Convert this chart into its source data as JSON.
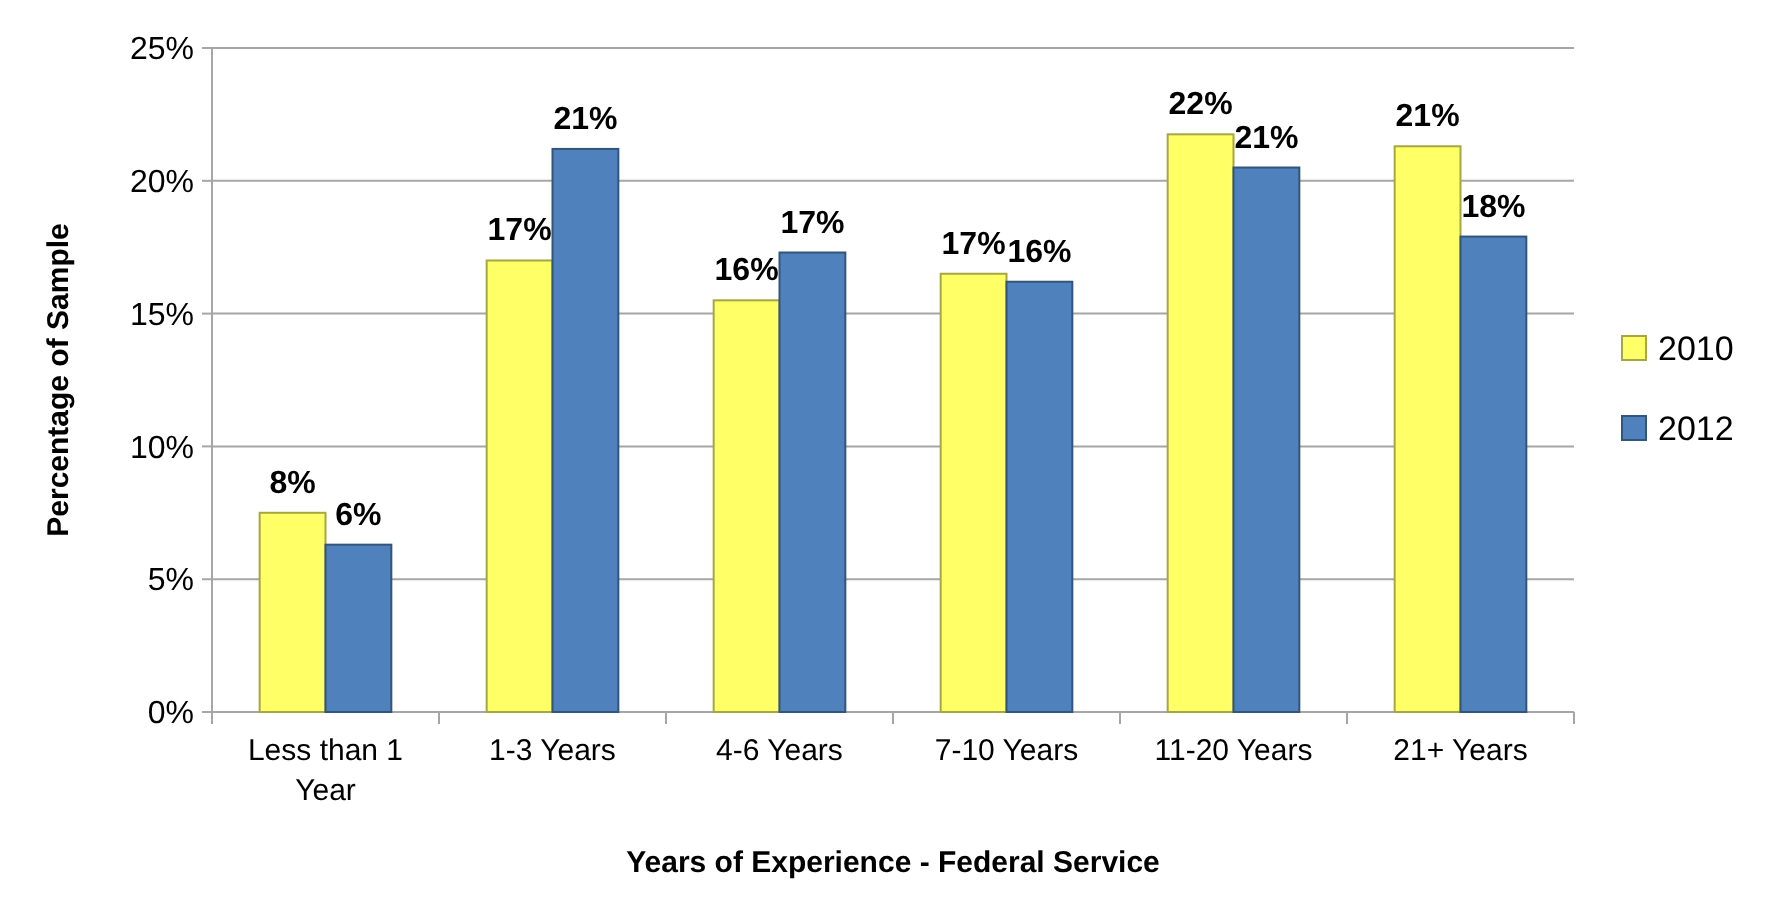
{
  "chart_data": {
    "type": "bar",
    "xlabel": "Years of Experience - Federal Service",
    "ylabel": "Percentage of  Sample",
    "categories": [
      "Less than 1 Year",
      "1-3 Years",
      "4-6 Years",
      "7-10 Years",
      "11-20 Years",
      "21+ Years"
    ],
    "series": [
      {
        "name": "2010",
        "color": "#ffff66",
        "values": [
          7.5,
          17.0,
          15.5,
          16.5,
          21.75,
          21.3
        ],
        "value_labels": [
          "8%",
          "17%",
          "16%",
          "17%",
          "22%",
          "21%"
        ]
      },
      {
        "name": "2012",
        "color": "#4f81bd",
        "values": [
          6.3,
          21.2,
          17.3,
          16.2,
          20.5,
          17.9
        ],
        "value_labels": [
          "6%",
          "21%",
          "17%",
          "16%",
          "21%",
          "18%"
        ]
      }
    ],
    "ylim": [
      0,
      25
    ],
    "yticks": [
      {
        "value": 0,
        "label": "0%"
      },
      {
        "value": 5,
        "label": "5%"
      },
      {
        "value": 10,
        "label": "10%"
      },
      {
        "value": 15,
        "label": "15%"
      },
      {
        "value": 20,
        "label": "20%"
      },
      {
        "value": 25,
        "label": "25%"
      }
    ],
    "grid": "y",
    "legend": "right"
  }
}
